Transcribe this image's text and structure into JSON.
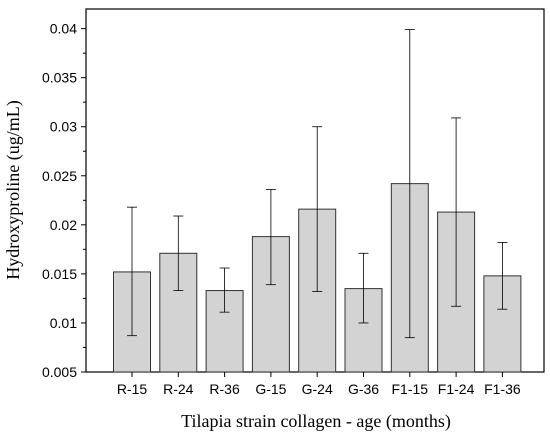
{
  "chart_data": {
    "type": "bar",
    "xlabel": "Tilapia strain collagen - age (months)",
    "ylabel": "Hydroxyproline (ug/mL)",
    "categories": [
      "R-15",
      "R-24",
      "R-36",
      "G-15",
      "G-24",
      "G-36",
      "F1-15",
      "F1-24",
      "F1-36"
    ],
    "values": [
      0.0152,
      0.0171,
      0.0133,
      0.0188,
      0.0216,
      0.0135,
      0.0242,
      0.0213,
      0.0148
    ],
    "error_low": [
      0.0087,
      0.0133,
      0.0111,
      0.0139,
      0.0132,
      0.01,
      0.0085,
      0.0117,
      0.0114
    ],
    "error_high": [
      0.0218,
      0.0209,
      0.0156,
      0.0236,
      0.03,
      0.0171,
      0.0399,
      0.0309,
      0.0182
    ],
    "ylim": [
      0.005,
      0.042
    ],
    "yticks": [
      0.005,
      0.01,
      0.015,
      0.02,
      0.025,
      0.03,
      0.035,
      0.04
    ],
    "ytick_labels": [
      "0.005",
      "0.01",
      "0.015",
      "0.02",
      "0.025",
      "0.03",
      "0.035",
      "0.04"
    ],
    "grid": false,
    "bar_color": "#d3d3d3",
    "bar_edge_color": "#333333"
  }
}
